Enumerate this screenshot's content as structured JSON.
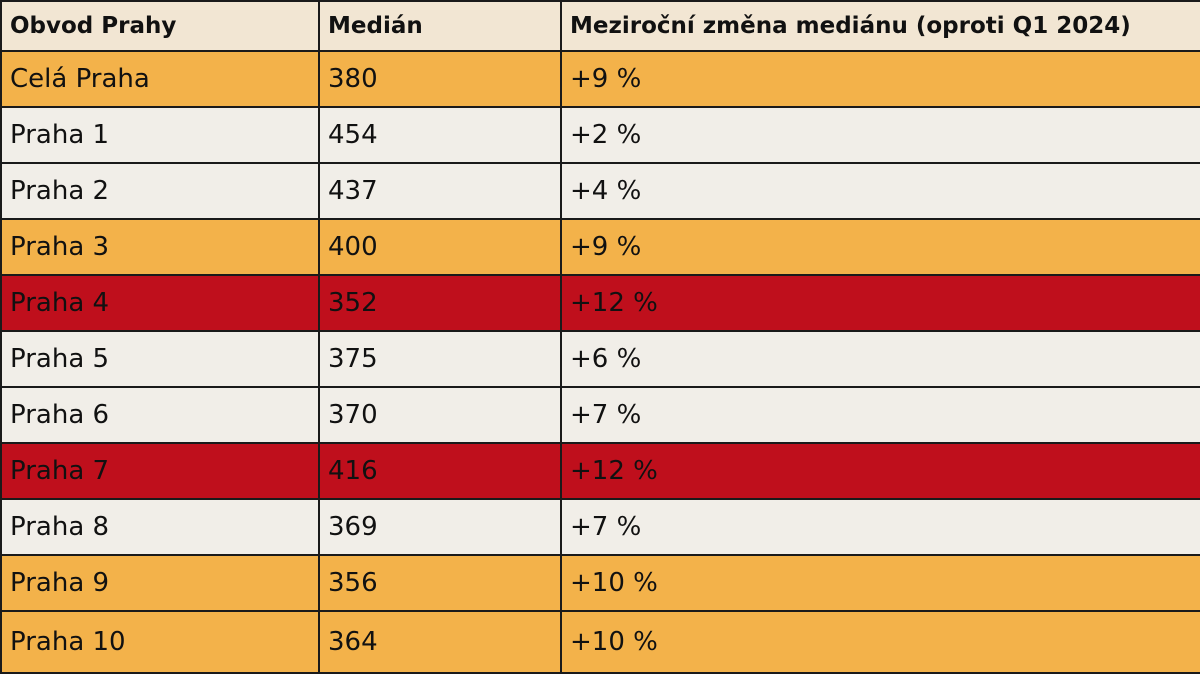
{
  "table": {
    "headers": [
      "Obvod Prahy",
      "Medián",
      "Meziroční změna mediánu (oproti Q1 2024)"
    ],
    "rows": [
      {
        "district": "Celá Praha",
        "median": "380",
        "change": "+9 %",
        "shade": "orange"
      },
      {
        "district": "Praha 1",
        "median": "454",
        "change": "+2 %",
        "shade": "light"
      },
      {
        "district": "Praha 2",
        "median": "437",
        "change": "+4 %",
        "shade": "light"
      },
      {
        "district": "Praha 3",
        "median": "400",
        "change": "+9 %",
        "shade": "orange"
      },
      {
        "district": "Praha 4",
        "median": "352",
        "change": "+12 %",
        "shade": "red"
      },
      {
        "district": "Praha 5",
        "median": "375",
        "change": "+6 %",
        "shade": "light"
      },
      {
        "district": "Praha 6",
        "median": "370",
        "change": "+7 %",
        "shade": "light"
      },
      {
        "district": "Praha 7",
        "median": "416",
        "change": "+12 %",
        "shade": "red"
      },
      {
        "district": "Praha 8",
        "median": "369",
        "change": "+7 %",
        "shade": "light"
      },
      {
        "district": "Praha 9",
        "median": "356",
        "change": "+10 %",
        "shade": "orange"
      },
      {
        "district": "Praha 10",
        "median": "364",
        "change": "+10 %",
        "shade": "orange"
      }
    ]
  },
  "colors": {
    "header": "#F2E6D3",
    "orange": "#F3B24A",
    "light": "#F1EEE8",
    "red": "#BF0F1C",
    "border": "#1a1a1a"
  }
}
